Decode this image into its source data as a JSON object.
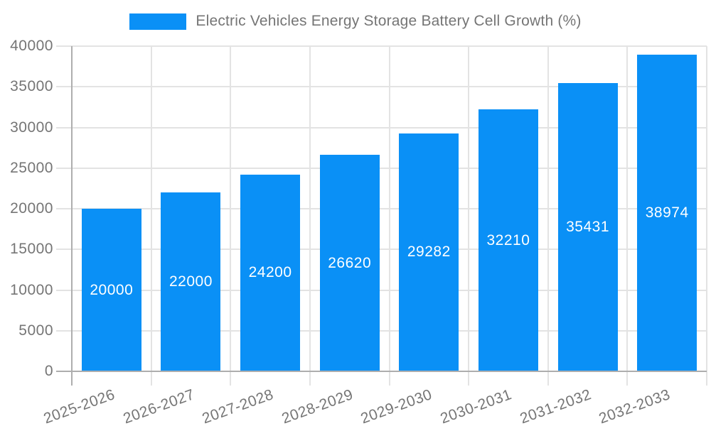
{
  "chart_data": {
    "type": "bar",
    "title": "Electric Vehicles Energy Storage Battery Cell Growth (%)",
    "series_name": "Electric Vehicles Energy Storage Battery Cell Growth (%)",
    "categories": [
      "2025-2026",
      "2026-2027",
      "2027-2028",
      "2028-2029",
      "2029-2030",
      "2030-2031",
      "2031-2032",
      "2032-2033"
    ],
    "values": [
      20000,
      22000,
      24200,
      26620,
      29282,
      32210,
      35431,
      38974
    ],
    "value_labels": [
      "20000",
      "22000",
      "24200",
      "26620",
      "29282",
      "32210",
      "35431",
      "38974"
    ],
    "xlabel": "",
    "ylabel": "",
    "ylim": [
      0,
      40000
    ],
    "ytick_step": 5000,
    "yticks": [
      0,
      5000,
      10000,
      15000,
      20000,
      25000,
      30000,
      35000,
      40000
    ],
    "ytick_labels": [
      "0",
      "5000",
      "10000",
      "15000",
      "20000",
      "25000",
      "30000",
      "35000",
      "40000"
    ],
    "grid": true,
    "legend_position": "top-center",
    "x_label_rotation_deg": -20,
    "value_label_position": "inside-center",
    "colors": {
      "bar": "#0a90f6",
      "value_label": "#ffffff",
      "gridline": "#e3e3e3",
      "axis_line": "#aeaeae",
      "tick_label": "#757575",
      "legend_text": "#757575",
      "background": "#ffffff"
    }
  }
}
